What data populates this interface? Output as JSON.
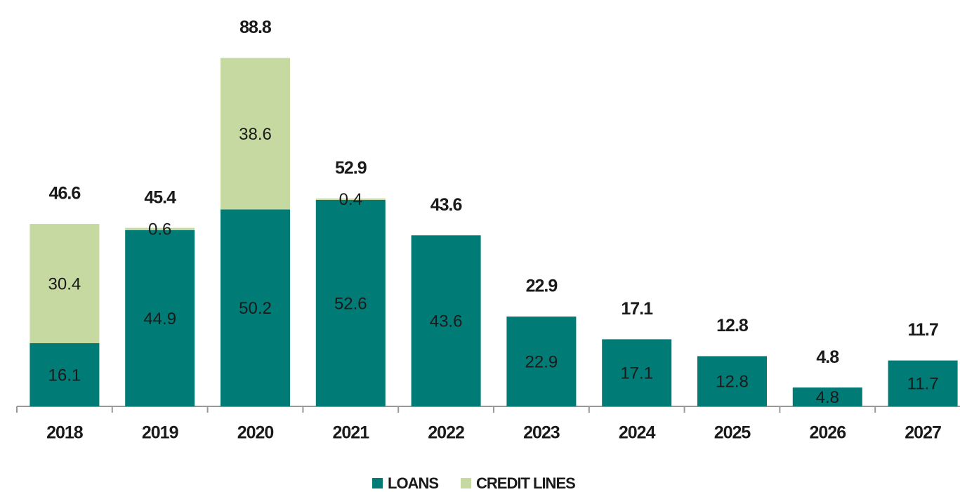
{
  "chart_data": {
    "type": "stacked_bar",
    "categories": [
      "2018",
      "2019",
      "2020",
      "2021",
      "2022",
      "2023",
      "2024",
      "2025",
      "2026",
      "2027"
    ],
    "series": [
      {
        "name": "LOANS",
        "color": "#007b76",
        "values": [
          16.1,
          44.9,
          50.2,
          52.6,
          43.6,
          22.9,
          17.1,
          12.8,
          4.8,
          11.7
        ]
      },
      {
        "name": "CREDIT LINES",
        "color": "#c5d9a0",
        "values": [
          30.4,
          0.6,
          38.6,
          0.4,
          null,
          null,
          null,
          null,
          null,
          null
        ]
      }
    ],
    "totals": [
      46.6,
      45.4,
      88.8,
      52.9,
      43.6,
      22.9,
      17.1,
      12.8,
      4.8,
      11.7
    ],
    "ylim": [
      0,
      100
    ],
    "legend": "bottom"
  }
}
